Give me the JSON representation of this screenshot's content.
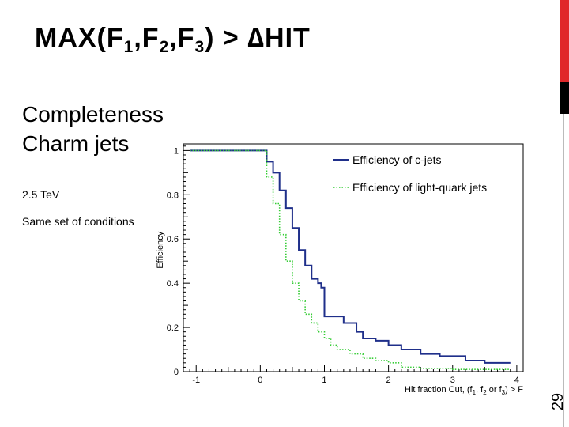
{
  "slide": {
    "title_parts": [
      "MAX(F",
      "1",
      ",F",
      "2",
      ",F",
      "3",
      ") > ∆HIT"
    ],
    "heading_lines": [
      "Completeness",
      "Charm jets"
    ],
    "energy": "2.5 TeV",
    "note": "Same set of conditions",
    "page_number": "29"
  },
  "colors": {
    "accent_red": "#e0282a",
    "c_jets": "#1f2f8a",
    "light_jets": "#33cc33"
  },
  "chart_data": {
    "type": "line",
    "ylabel": "Efficiency",
    "xlabel_parts": [
      "Hit fraction Cut, (f",
      "1",
      ", f",
      "2",
      " or f",
      "3",
      ") > F"
    ],
    "xlim": [
      -1.2,
      4.1
    ],
    "ylim": [
      0,
      1.03
    ],
    "xticks": [
      -1,
      0,
      1,
      2,
      3,
      4
    ],
    "yticks": [
      0,
      0.2,
      0.4,
      0.6,
      0.8,
      1
    ],
    "ytick_labels": [
      "0",
      "0.2",
      "0.4",
      "0.6",
      "0.8",
      "1"
    ],
    "legend_position": "top-right",
    "series": [
      {
        "name": "Efficiency of c-jets",
        "color": "#1f2f8a",
        "style": "solid",
        "x": [
          -1.1,
          0.0,
          0.1,
          0.2,
          0.3,
          0.4,
          0.5,
          0.6,
          0.7,
          0.8,
          0.9,
          0.95,
          1.0,
          1.1,
          1.3,
          1.5,
          1.6,
          1.8,
          2.0,
          2.2,
          2.5,
          2.8,
          3.0,
          3.2,
          3.5,
          3.9
        ],
        "y": [
          1.0,
          1.0,
          0.95,
          0.9,
          0.82,
          0.74,
          0.65,
          0.55,
          0.48,
          0.42,
          0.4,
          0.38,
          0.25,
          0.25,
          0.22,
          0.18,
          0.15,
          0.14,
          0.12,
          0.1,
          0.08,
          0.07,
          0.07,
          0.05,
          0.04,
          0.04
        ]
      },
      {
        "name": "Efficiency of light-quark jets",
        "color": "#33cc33",
        "style": "dotted",
        "x": [
          -1.1,
          0.0,
          0.1,
          0.2,
          0.3,
          0.4,
          0.5,
          0.6,
          0.7,
          0.8,
          0.9,
          1.0,
          1.1,
          1.2,
          1.4,
          1.6,
          1.8,
          2.0,
          2.2,
          2.5,
          3.0,
          3.5,
          3.9
        ],
        "y": [
          1.0,
          1.0,
          0.88,
          0.76,
          0.62,
          0.5,
          0.4,
          0.32,
          0.26,
          0.22,
          0.18,
          0.15,
          0.12,
          0.1,
          0.08,
          0.06,
          0.05,
          0.04,
          0.02,
          0.015,
          0.01,
          0.01,
          0.01
        ]
      }
    ]
  }
}
